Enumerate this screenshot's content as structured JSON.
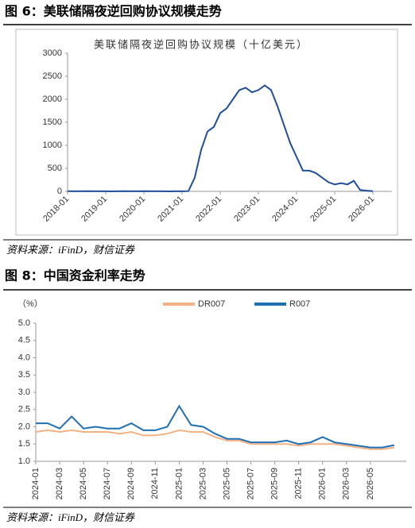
{
  "chart_data": [
    {
      "type": "line",
      "caption": "图 6：美联储隔夜逆回购协议规模走势",
      "title": "美联储隔夜逆回购协议规模（十亿美元）",
      "source": "资料来源：iFinD，财信证券",
      "color": "#1f4e9c",
      "x": [
        "2018-01",
        "2018-03",
        "2018-05",
        "2018-07",
        "2018-09",
        "2018-11",
        "2019-01",
        "2019-03",
        "2019-05",
        "2019-07",
        "2019-09",
        "2019-11",
        "2020-01",
        "2020-03",
        "2020-05",
        "2020-07",
        "2020-09",
        "2020-11",
        "2021-01",
        "2021-03",
        "2021-05",
        "2021-07",
        "2021-09",
        "2021-11",
        "2022-01",
        "2022-03",
        "2022-05",
        "2022-07",
        "2022-09",
        "2022-11",
        "2023-01",
        "2023-03",
        "2023-05",
        "2023-07",
        "2023-09",
        "2023-11",
        "2024-01",
        "2024-03",
        "2024-05",
        "2024-07",
        "2024-09",
        "2024-11",
        "2025-01",
        "2025-03",
        "2025-05",
        "2025-07",
        "2025-09",
        "2025-11",
        "2026-01"
      ],
      "values": [
        5,
        2,
        1,
        3,
        2,
        1,
        2,
        0,
        1,
        3,
        1,
        2,
        3,
        1,
        1,
        1,
        0,
        1,
        2,
        5,
        300,
        900,
        1300,
        1400,
        1700,
        1800,
        2000,
        2200,
        2250,
        2150,
        2200,
        2300,
        2200,
        1850,
        1450,
        1050,
        750,
        450,
        450,
        400,
        300,
        200,
        150,
        180,
        150,
        230,
        30,
        15,
        5
      ],
      "xlim": [
        "2018-01",
        "2026-07"
      ],
      "xticks": [
        "2018-01",
        "2019-01",
        "2020-01",
        "2021-01",
        "2022-01",
        "2023-01",
        "2024-01",
        "2025-01",
        "2026-01"
      ],
      "ylim": [
        0,
        3000
      ],
      "yticks": [
        0,
        500,
        1000,
        1500,
        2000,
        2500,
        3000
      ]
    },
    {
      "type": "line",
      "caption": "图 8：中国资金利率走势",
      "ylabel": "（%）",
      "source": "资料来源：iFinD，财信证券",
      "x": [
        "2024-01",
        "2024-02",
        "2024-03",
        "2024-04",
        "2024-05",
        "2024-06",
        "2024-07",
        "2024-08",
        "2024-09",
        "2024-10",
        "2024-11",
        "2024-12",
        "2025-01",
        "2025-02",
        "2025-03",
        "2025-04",
        "2025-05",
        "2025-06",
        "2025-07",
        "2025-08",
        "2025-09",
        "2025-10",
        "2025-11",
        "2025-12",
        "2026-01",
        "2026-02",
        "2026-03",
        "2026-04",
        "2026-05",
        "2026-06",
        "2026-07"
      ],
      "series": [
        {
          "name": "DR007",
          "color": "#f4b183",
          "values": [
            1.85,
            1.9,
            1.85,
            1.9,
            1.85,
            1.85,
            1.85,
            1.8,
            1.85,
            1.75,
            1.75,
            1.8,
            1.9,
            1.85,
            1.85,
            1.7,
            1.6,
            1.6,
            1.5,
            1.5,
            1.5,
            1.5,
            1.45,
            1.5,
            1.5,
            1.5,
            1.45,
            1.4,
            1.35,
            1.35,
            1.4
          ]
        },
        {
          "name": "R007",
          "color": "#1f6fb4",
          "values": [
            2.1,
            2.1,
            1.95,
            2.3,
            1.95,
            2.0,
            1.95,
            1.95,
            2.1,
            1.9,
            1.9,
            2.0,
            2.6,
            2.05,
            2.0,
            1.8,
            1.65,
            1.65,
            1.55,
            1.55,
            1.55,
            1.6,
            1.5,
            1.55,
            1.7,
            1.55,
            1.5,
            1.45,
            1.4,
            1.4,
            1.47
          ]
        }
      ],
      "xlim": [
        "2024-01",
        "2026-08"
      ],
      "xticks": [
        "2024-01",
        "2024-03",
        "2024-05",
        "2024-07",
        "2024-09",
        "2024-11",
        "2025-01",
        "2025-03",
        "2025-05",
        "2025-07",
        "2025-09",
        "2025-11",
        "2026-01",
        "2026-03",
        "2026-05"
      ],
      "ylim": [
        1.0,
        5.0
      ],
      "yticks": [
        {
          "value": 1.0,
          "label": "1.0"
        },
        {
          "value": 1.5,
          "label": "1.5"
        },
        {
          "value": 2.0,
          "label": "2.0"
        },
        {
          "value": 2.5,
          "label": "2.5"
        },
        {
          "value": 3.0,
          "label": "3.0"
        },
        {
          "value": 3.5,
          "label": "3.5"
        },
        {
          "value": 4.0,
          "label": "4.0"
        },
        {
          "value": 4.5,
          "label": "4.5"
        },
        {
          "value": 5.0,
          "label": "5.0"
        }
      ]
    }
  ]
}
